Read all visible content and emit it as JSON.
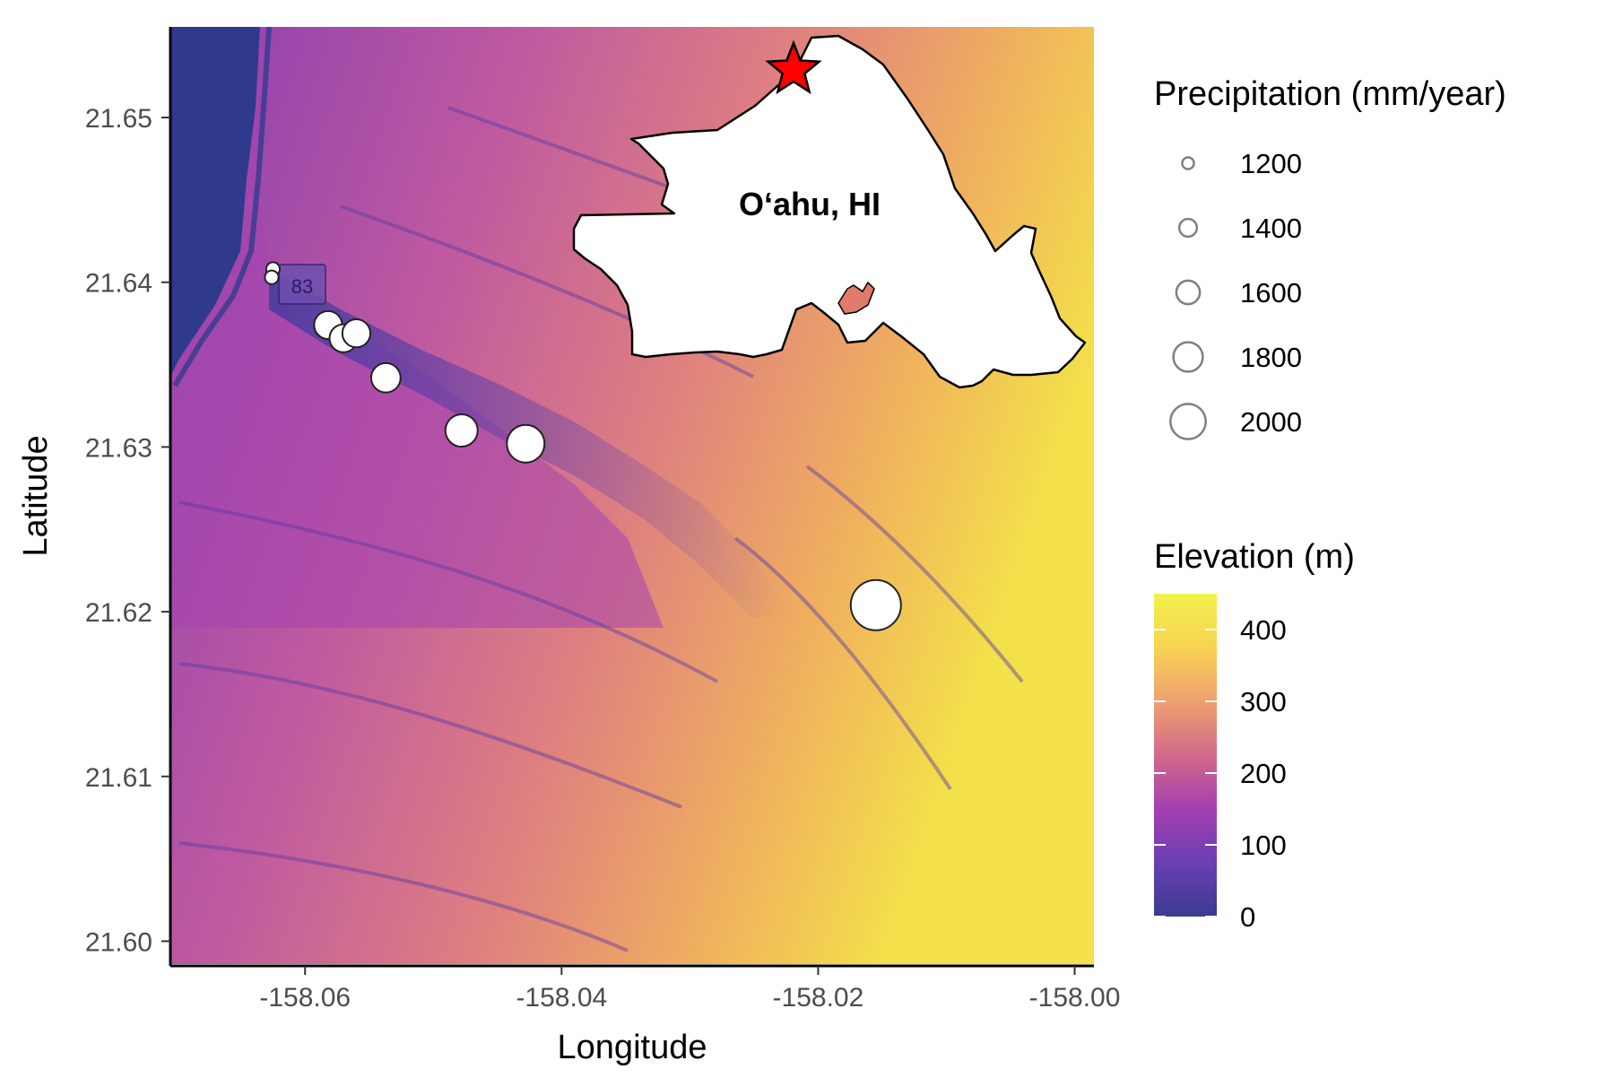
{
  "map": {
    "xlabel": "Longitude",
    "ylabel": "Latitude",
    "x_ticks": [
      {
        "value": -158.06,
        "label": "-158.06"
      },
      {
        "value": -158.04,
        "label": "-158.04"
      },
      {
        "value": -158.02,
        "label": "-158.02"
      },
      {
        "value": -158.0,
        "label": "-158.00"
      }
    ],
    "y_ticks": [
      {
        "value": 21.6,
        "label": "21.60"
      },
      {
        "value": 21.61,
        "label": "21.61"
      },
      {
        "value": 21.62,
        "label": "21.62"
      },
      {
        "value": 21.63,
        "label": "21.63"
      },
      {
        "value": 21.64,
        "label": "21.64"
      },
      {
        "value": 21.65,
        "label": "21.65"
      }
    ],
    "x_range": [
      -158.0705,
      -157.9985
    ],
    "y_range": [
      21.5985,
      21.6555
    ],
    "road_shield": "83",
    "inset_label": "O‘ahu, HI",
    "star_color": "#ff0000"
  },
  "stations": [
    {
      "lon": -158.0625,
      "lat": 21.6408,
      "precip": 1180
    },
    {
      "lon": -158.0626,
      "lat": 21.6403,
      "precip": 1180
    },
    {
      "lon": -158.0582,
      "lat": 21.6374,
      "precip": 1580
    },
    {
      "lon": -158.057,
      "lat": 21.6366,
      "precip": 1580
    },
    {
      "lon": -158.056,
      "lat": 21.6369,
      "precip": 1580
    },
    {
      "lon": -158.0537,
      "lat": 21.6342,
      "precip": 1620
    },
    {
      "lon": -158.0478,
      "lat": 21.631,
      "precip": 1700
    },
    {
      "lon": -158.0428,
      "lat": 21.6302,
      "precip": 1850
    },
    {
      "lon": -158.0155,
      "lat": 21.6204,
      "precip": 2200
    }
  ],
  "legend_precip": {
    "title": "Precipitation (mm/year)",
    "entries": [
      {
        "value": 1200,
        "label": "1200"
      },
      {
        "value": 1400,
        "label": "1400"
      },
      {
        "value": 1600,
        "label": "1600"
      },
      {
        "value": 1800,
        "label": "1800"
      },
      {
        "value": 2000,
        "label": "2000"
      }
    ]
  },
  "legend_elev": {
    "title": "Elevation (m)",
    "range": [
      0,
      450
    ],
    "ticks": [
      {
        "value": 0,
        "label": "0"
      },
      {
        "value": 100,
        "label": "100"
      },
      {
        "value": 200,
        "label": "200"
      },
      {
        "value": 300,
        "label": "300"
      },
      {
        "value": 400,
        "label": "400"
      }
    ],
    "colors": [
      "#3b3b8f",
      "#6a3fb3",
      "#a43fb0",
      "#d26a8a",
      "#eea070",
      "#f8d253",
      "#f2f24c"
    ]
  }
}
